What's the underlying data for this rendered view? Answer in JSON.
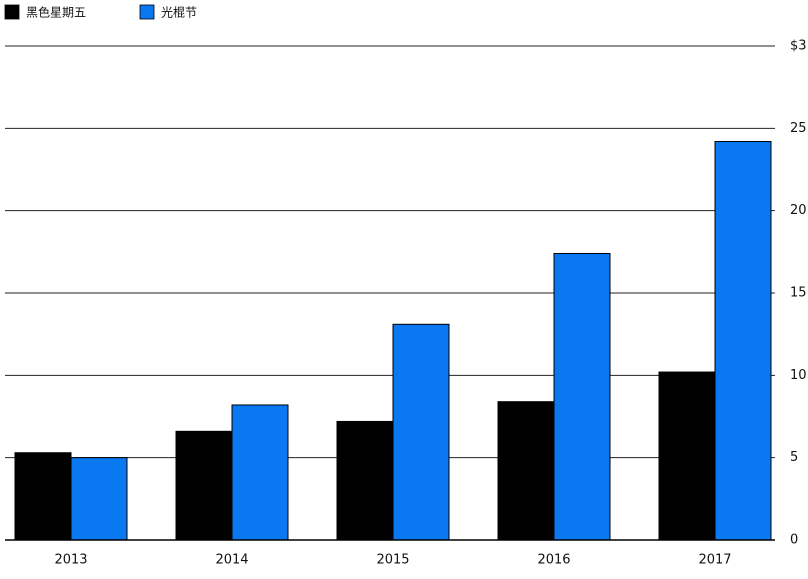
{
  "chart_data": {
    "type": "bar",
    "categories": [
      "2013",
      "2014",
      "2015",
      "2016",
      "2017"
    ],
    "series": [
      {
        "name": "黑色星期五",
        "color": "#000000",
        "values": [
          5.3,
          6.6,
          7.2,
          8.4,
          10.2
        ]
      },
      {
        "name": "光棍节",
        "color": "#0a78f0",
        "values": [
          5.0,
          8.2,
          13.1,
          17.4,
          24.2
        ]
      }
    ],
    "ylim": [
      0,
      30
    ],
    "yticks": [
      0,
      5,
      10,
      15,
      20,
      25,
      {
        "value": 30,
        "label": "$3"
      }
    ],
    "grid": true,
    "legend": "top-left"
  }
}
